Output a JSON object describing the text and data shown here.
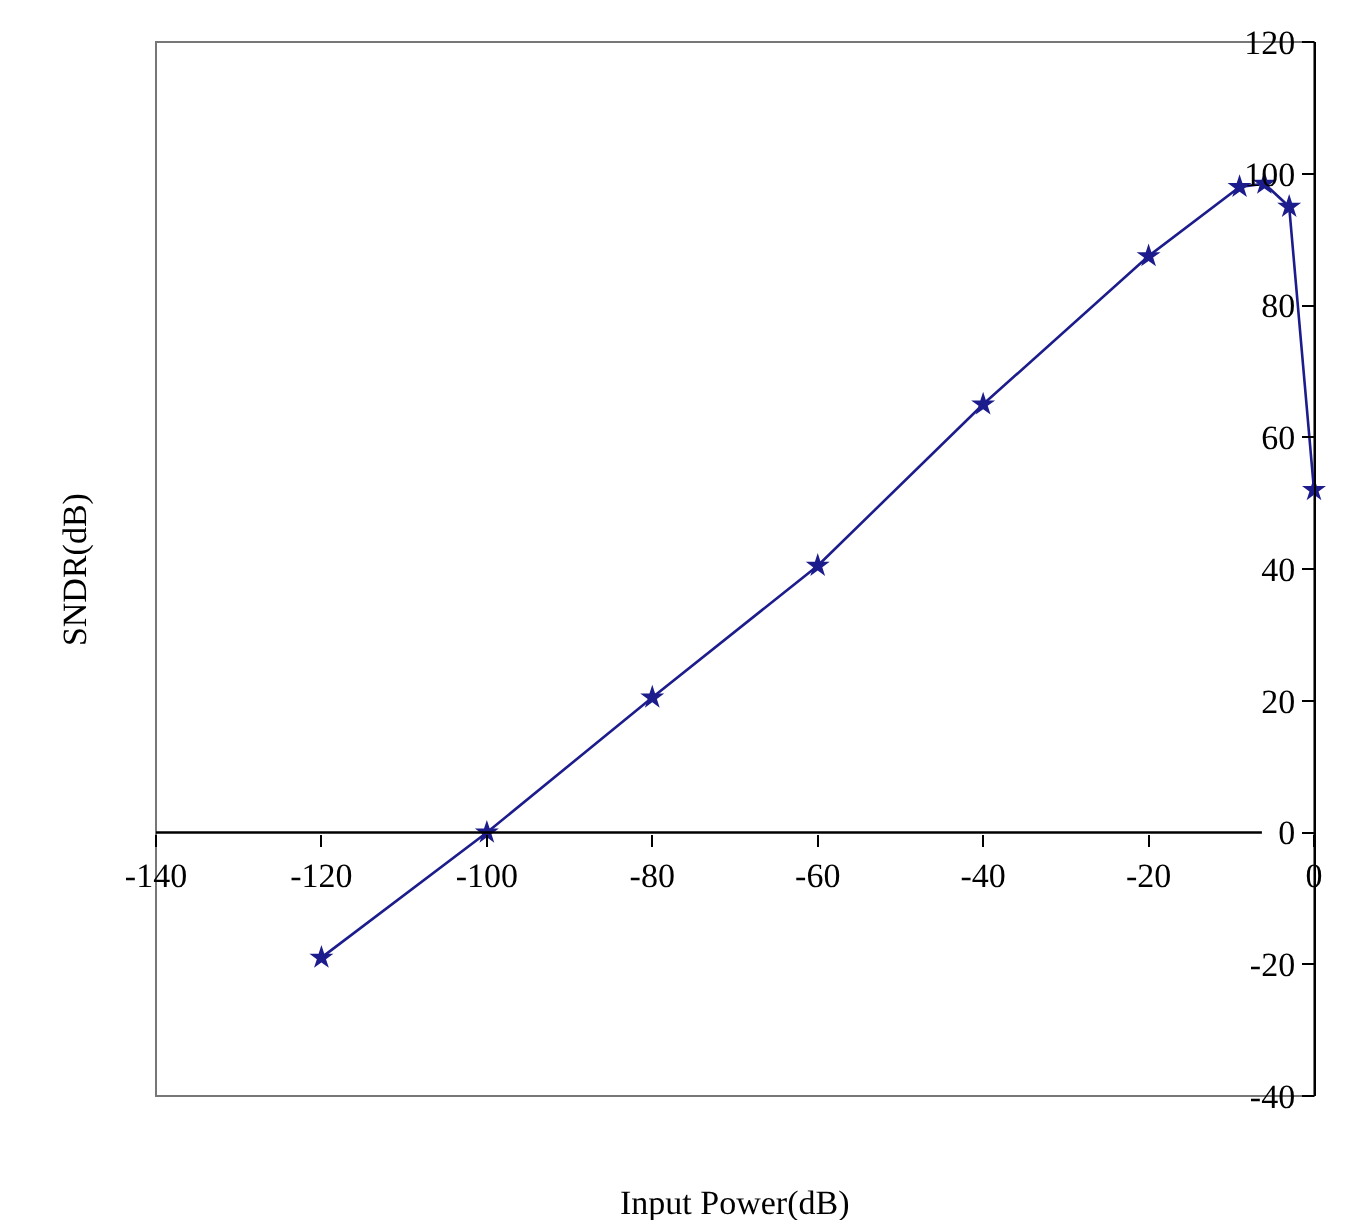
{
  "chart_data": {
    "type": "line",
    "xlabel": "Input Power(dB)",
    "ylabel": "SNDR(dB)",
    "x": [
      -120,
      -100,
      -80,
      -60,
      -40,
      -20,
      -9,
      -6,
      -3,
      0
    ],
    "series": [
      {
        "color": "#1c1c8c",
        "values": [
          -19,
          0,
          20.5,
          40.5,
          65,
          87.5,
          98,
          98.5,
          95,
          52
        ]
      }
    ],
    "xlim": [
      -140,
      0
    ],
    "ylim": [
      -40,
      120
    ],
    "xticks": [
      -140,
      -120,
      -100,
      -80,
      -60,
      -40,
      -20,
      0
    ],
    "yticks": [
      -40,
      -20,
      0,
      20,
      40,
      60,
      80,
      100,
      120
    ],
    "grid": false,
    "legend": false,
    "marker": "star",
    "line_style": "solid"
  }
}
